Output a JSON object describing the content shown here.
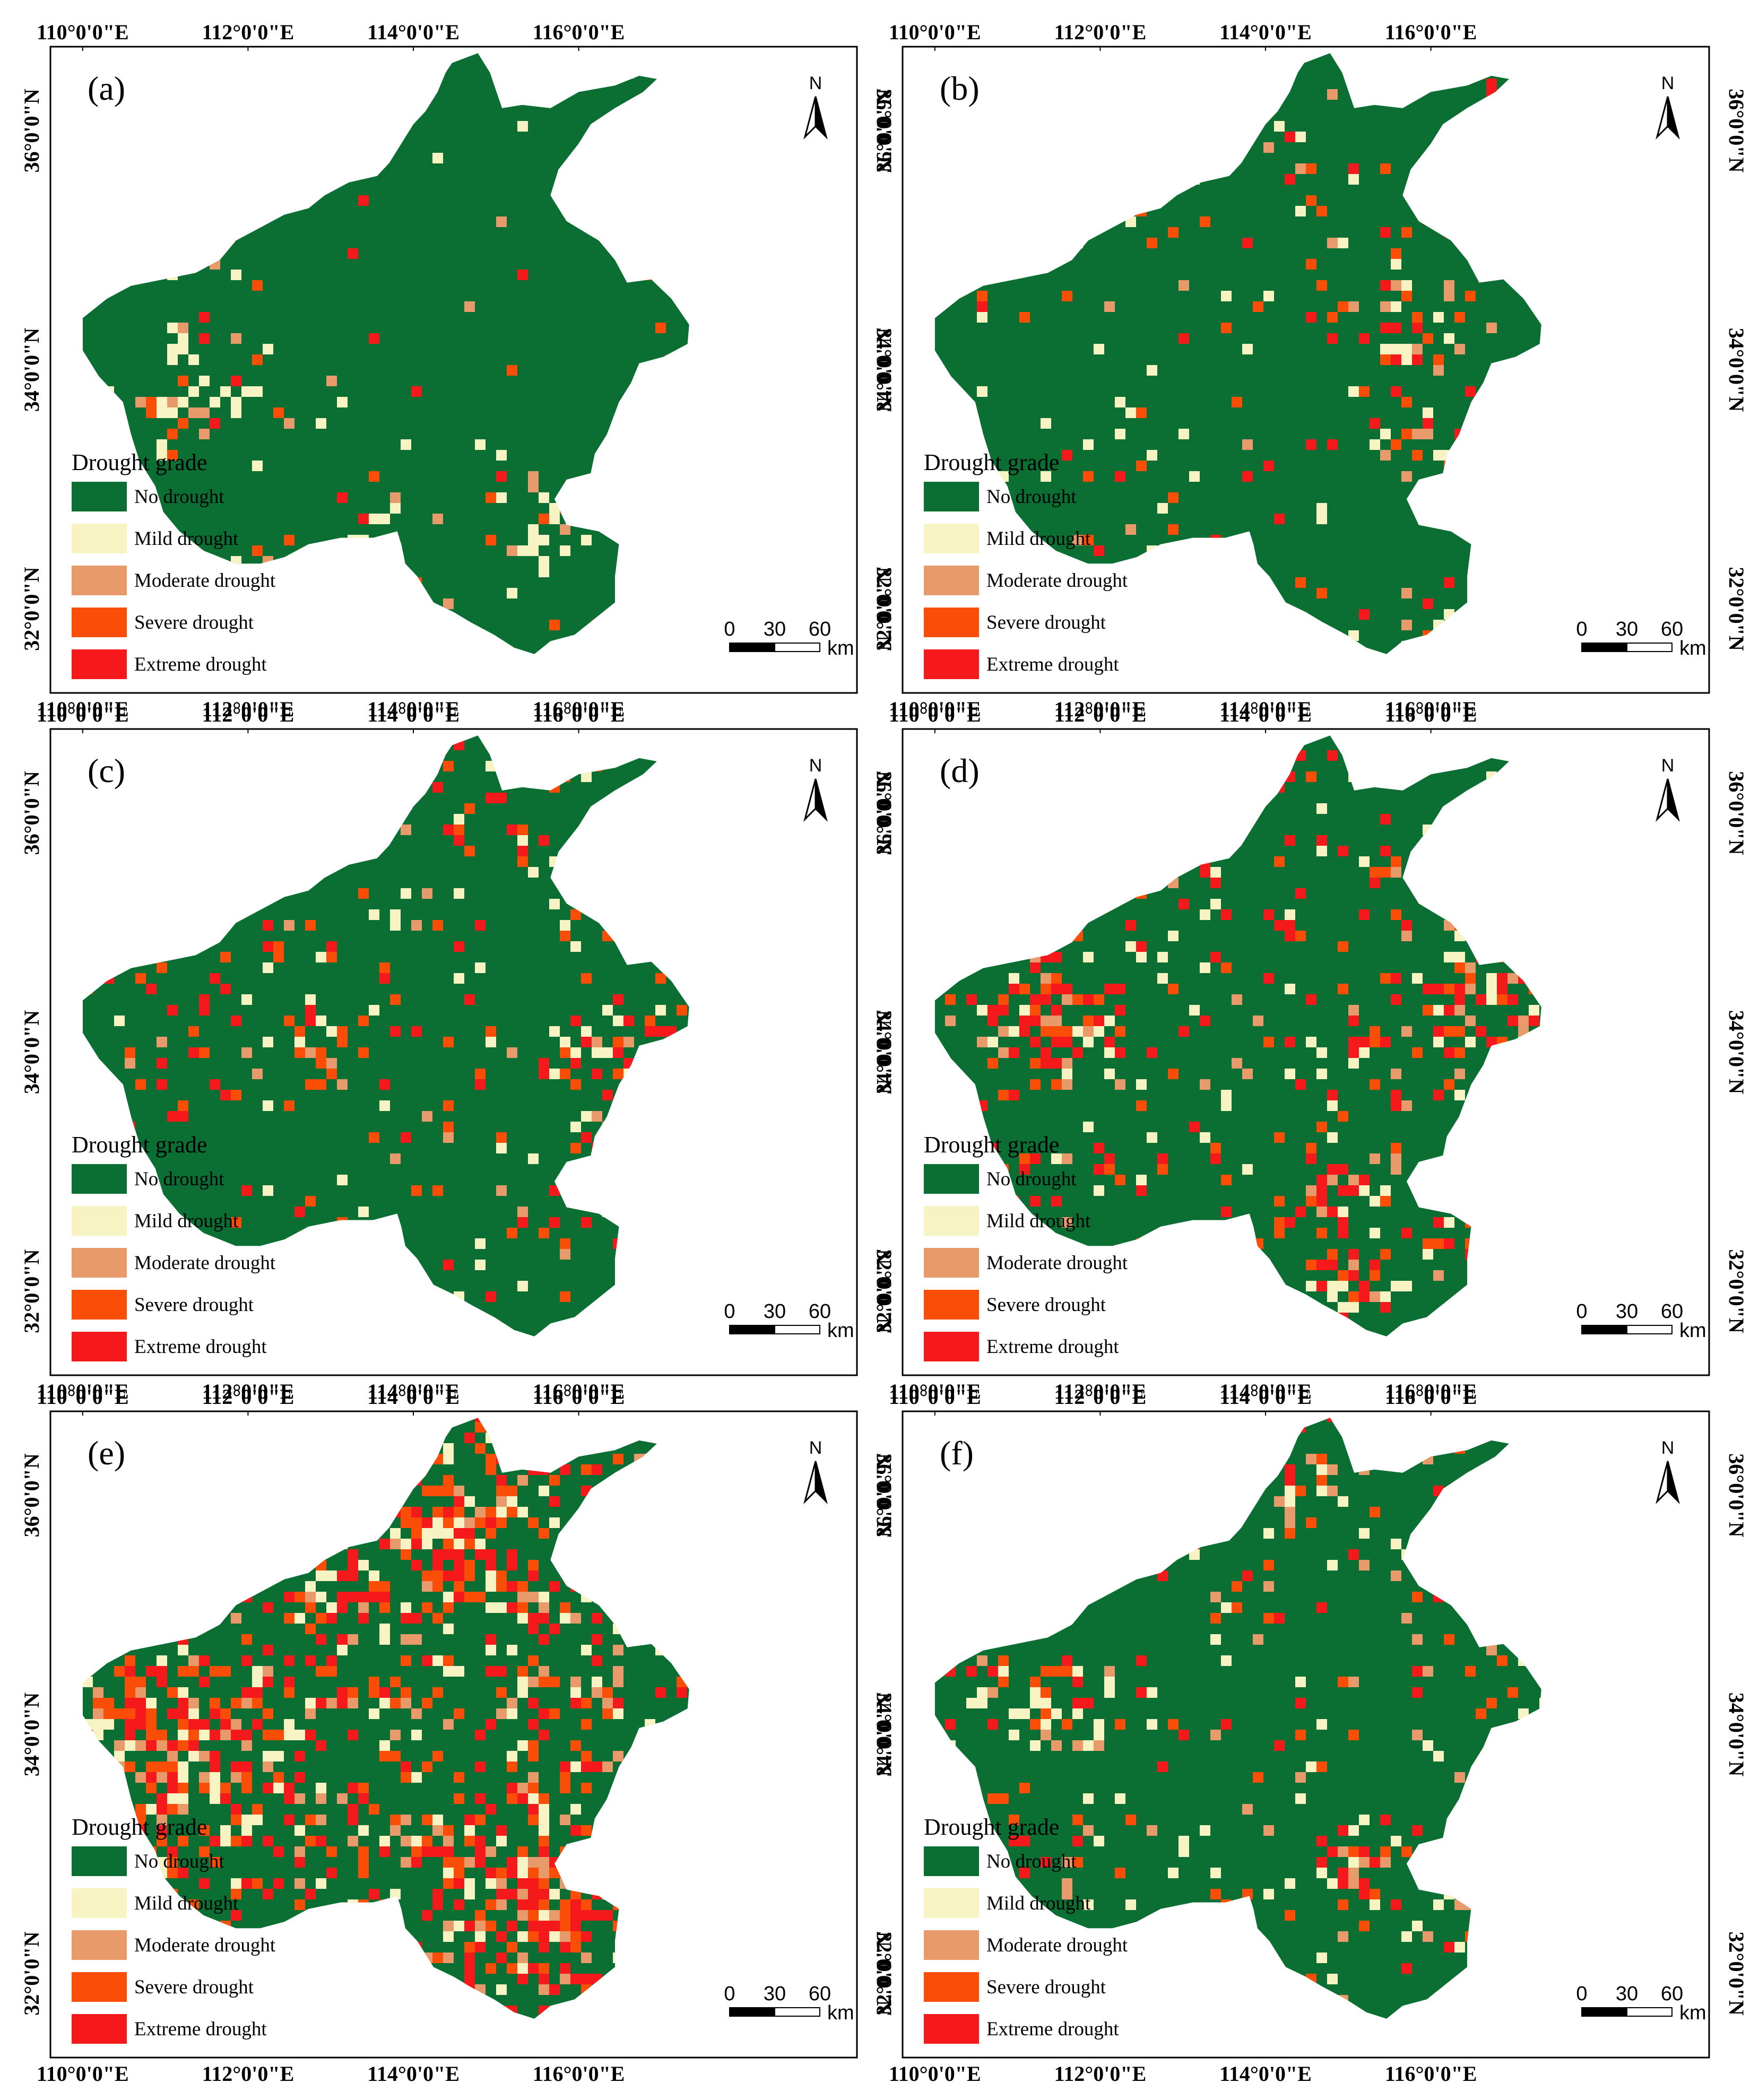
{
  "figure": {
    "colors": {
      "no_drought": "#0b6e33",
      "mild": "#f7f3c2",
      "moderate": "#e99a6b",
      "severe": "#fa4d07",
      "extreme": "#f5191c",
      "frame": "#000000",
      "background": "#ffffff"
    },
    "lon_labels": [
      "110°0'0\"E",
      "112°0'0\"E",
      "114°0'0\"E",
      "116°0'0\"E"
    ],
    "lat_labels": [
      "36°0'0\"N",
      "34°0'0\"N",
      "32°0'0\"N"
    ],
    "north_label": "N",
    "scale": {
      "labels": [
        "0",
        "30",
        "60"
      ],
      "unit": "km"
    },
    "legend": {
      "title": "Drought grade",
      "items": [
        {
          "label": "No drought",
          "color_key": "no_drought"
        },
        {
          "label": "Mild drought",
          "color_key": "mild"
        },
        {
          "label": "Moderate drought",
          "color_key": "moderate"
        },
        {
          "label": "Severe drought",
          "color_key": "severe"
        },
        {
          "label": "Extreme drought",
          "color_key": "extreme"
        }
      ]
    },
    "panels": [
      {
        "label": "(a)",
        "drought_fraction": 0.05,
        "seed": 11,
        "mix": [
          0.35,
          0.3,
          0.2,
          0.15
        ],
        "hotspots": [
          [
            0.18,
            0.52,
            0.1
          ],
          [
            0.4,
            0.74,
            0.07
          ],
          [
            0.6,
            0.72,
            0.08
          ]
        ]
      },
      {
        "label": "(b)",
        "drought_fraction": 0.1,
        "seed": 23,
        "mix": [
          0.3,
          0.15,
          0.25,
          0.3
        ],
        "hotspots": [
          [
            0.62,
            0.45,
            0.08
          ],
          [
            0.63,
            0.6,
            0.07
          ],
          [
            0.66,
            0.9,
            0.06
          ]
        ]
      },
      {
        "label": "(c)",
        "drought_fraction": 0.15,
        "seed": 37,
        "mix": [
          0.25,
          0.15,
          0.3,
          0.3
        ],
        "hotspots": [
          [
            0.68,
            0.5,
            0.12
          ],
          [
            0.7,
            0.68,
            0.08
          ],
          [
            0.33,
            0.48,
            0.06
          ],
          [
            0.9,
            0.45,
            0.05
          ]
        ]
      },
      {
        "label": "(d)",
        "drought_fraction": 0.22,
        "seed": 51,
        "mix": [
          0.2,
          0.15,
          0.25,
          0.4
        ],
        "hotspots": [
          [
            0.18,
            0.45,
            0.12
          ],
          [
            0.72,
            0.42,
            0.1
          ],
          [
            0.52,
            0.72,
            0.07
          ],
          [
            0.56,
            0.85,
            0.06
          ]
        ]
      },
      {
        "label": "(e)",
        "drought_fraction": 0.55,
        "seed": 67,
        "mix": [
          0.2,
          0.15,
          0.3,
          0.35
        ],
        "hotspots": [
          [
            0.15,
            0.52,
            0.18
          ],
          [
            0.6,
            0.75,
            0.14
          ],
          [
            0.5,
            0.2,
            0.1
          ]
        ]
      },
      {
        "label": "(f)",
        "drought_fraction": 0.15,
        "seed": 79,
        "mix": [
          0.3,
          0.2,
          0.3,
          0.2
        ],
        "hotspots": [
          [
            0.2,
            0.45,
            0.09
          ],
          [
            0.5,
            0.12,
            0.06
          ],
          [
            0.55,
            0.7,
            0.07
          ],
          [
            0.92,
            0.5,
            0.06
          ]
        ]
      }
    ]
  }
}
